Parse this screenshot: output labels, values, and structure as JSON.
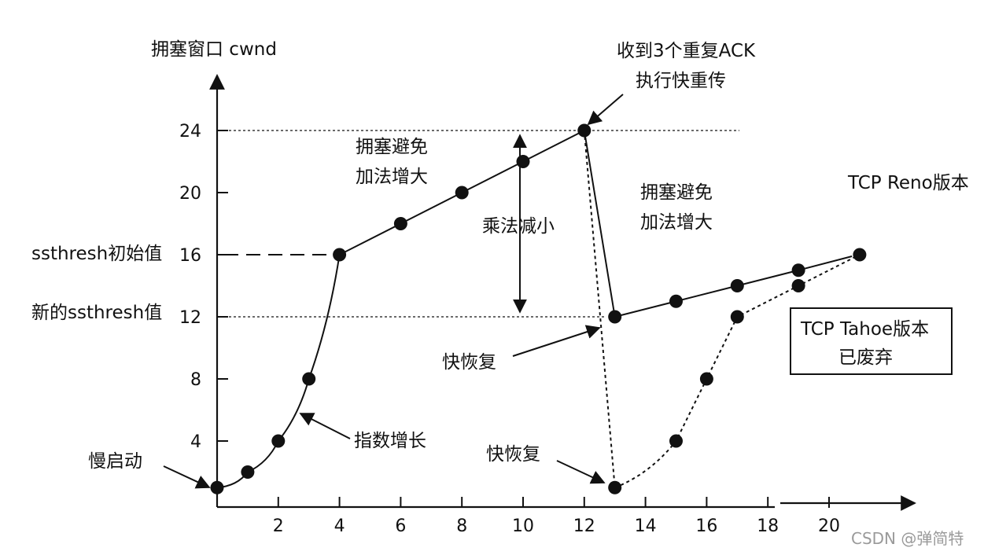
{
  "chart_data": {
    "type": "line",
    "ylabel": "拥塞窗口 cwnd",
    "xticks": [
      2,
      4,
      6,
      8,
      10,
      12,
      14,
      16,
      18,
      20
    ],
    "yticks": [
      4,
      8,
      12,
      16,
      20,
      24
    ],
    "xlim": [
      0,
      22
    ],
    "ylim": [
      0,
      27
    ],
    "series": [
      {
        "name": "TCP Reno版本",
        "style": "solid",
        "x": [
          0,
          1,
          2,
          3,
          4,
          6,
          8,
          10,
          12,
          13,
          15,
          17,
          19
        ],
        "y": [
          1,
          2,
          4,
          8,
          16,
          18,
          20,
          22,
          24,
          12,
          13,
          14,
          15
        ]
      },
      {
        "name": "TCP Tahoe版本",
        "style": "dotted",
        "x": [
          12,
          13,
          15,
          16,
          17,
          19,
          21
        ],
        "y": [
          24,
          1,
          4,
          8,
          12,
          14,
          16
        ]
      }
    ],
    "reference_lines": [
      {
        "y": 24,
        "style": "dotted"
      },
      {
        "y": 16,
        "style": "dashed"
      },
      {
        "y": 12,
        "style": "dotted"
      }
    ],
    "annotations": {
      "triple_ack_line1": "收到3个重复ACK",
      "triple_ack_line2": "执行快重传",
      "ca1_line1": "拥塞避免",
      "ca1_line2": "加法增大",
      "multiplicative": "乘法减小",
      "ca2_line1": "拥塞避免",
      "ca2_line2": "加法增大",
      "reno_label": "TCP Reno版本",
      "ssthresh_init": "ssthresh初始值",
      "ssthresh_new": "新的ssthresh值",
      "fast_recovery": "快恢复",
      "fast_recovery_2": "快恢复",
      "exponential": "指数增长",
      "slow_start": "慢启动",
      "tahoe_line1": "TCP Tahoe版本",
      "tahoe_line2": "已废弃"
    }
  },
  "watermark": "CSDN @弹简特"
}
